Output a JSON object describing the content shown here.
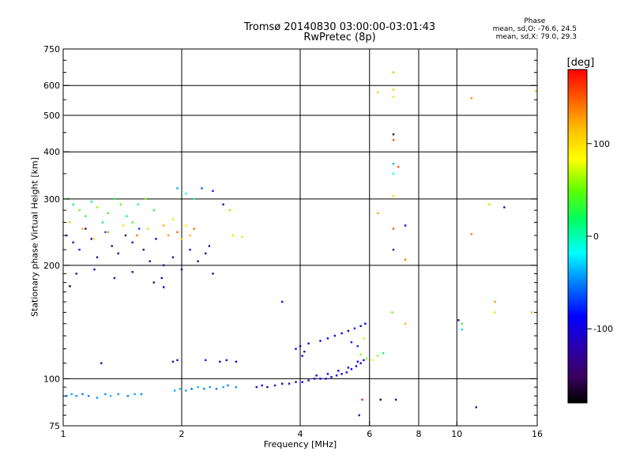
{
  "header": {
    "title": "Tromsø 20140830 03:00:00-03:01:43",
    "subtitle": "RwPretec (8p)"
  },
  "phase_stats": {
    "heading": "Phase",
    "line_o": "mean, sd,O: -76.6, 24.5",
    "line_x": "mean, sd,X:  79.0, 29.3"
  },
  "colorbar": {
    "label": "[deg]",
    "range": [
      -180,
      180
    ],
    "ticks": [
      "100",
      "0",
      "-100"
    ],
    "tick_values": [
      100,
      0,
      -100
    ]
  },
  "chart_data": {
    "type": "scatter",
    "title": "Tromsø 20140830 03:00:00-03:01:43",
    "subtitle": "RwPretec (8p)",
    "xlabel": "Frequency [MHz]",
    "ylabel": "Stationary phase Virtual Height [km]",
    "x_scale": "log",
    "y_scale": "log",
    "xlim": [
      1,
      16
    ],
    "ylim": [
      75,
      750
    ],
    "x_ticks": [
      1,
      2,
      4,
      6,
      8,
      10,
      16
    ],
    "y_ticks": [
      75,
      100,
      200,
      300,
      400,
      500,
      600,
      750
    ],
    "x_gridlines": [
      2,
      4,
      6,
      8,
      10
    ],
    "y_gridlines": [
      100,
      200,
      300,
      400,
      500,
      600
    ],
    "color_by": "phase_deg",
    "series": [
      {
        "points": [
          [
            1.02,
            90,
            -50
          ],
          [
            1.05,
            91,
            -40
          ],
          [
            1.08,
            90,
            -45
          ],
          [
            1.12,
            91,
            -55
          ],
          [
            1.16,
            90,
            -50
          ],
          [
            1.22,
            89,
            -45
          ],
          [
            1.28,
            91,
            -50
          ],
          [
            1.32,
            90,
            -35
          ],
          [
            1.38,
            91,
            -45
          ],
          [
            1.46,
            90,
            -50
          ],
          [
            1.52,
            91,
            -40
          ],
          [
            1.58,
            91,
            -50
          ],
          [
            1.25,
            110,
            -110
          ],
          [
            1.9,
            111,
            -120
          ],
          [
            1.95,
            112,
            -115
          ],
          [
            1.92,
            93,
            -40
          ],
          [
            1.98,
            94,
            -35
          ],
          [
            2.05,
            93,
            -45
          ],
          [
            2.12,
            94,
            -60
          ],
          [
            2.2,
            95,
            -40
          ],
          [
            2.28,
            94,
            -50
          ],
          [
            2.36,
            95,
            -45
          ],
          [
            2.45,
            94,
            -55
          ],
          [
            2.55,
            95,
            -40
          ],
          [
            2.62,
            96,
            -50
          ],
          [
            2.75,
            95,
            -45
          ],
          [
            2.3,
            112,
            -90
          ],
          [
            2.5,
            111,
            -100
          ],
          [
            2.6,
            112,
            -95
          ],
          [
            2.75,
            111,
            -85
          ],
          [
            3.1,
            95,
            -110
          ],
          [
            3.2,
            96,
            -115
          ],
          [
            3.3,
            95,
            -120
          ],
          [
            3.45,
            96,
            -110
          ],
          [
            3.6,
            97,
            -105
          ],
          [
            3.75,
            97,
            -115
          ],
          [
            3.9,
            98,
            -110
          ],
          [
            4.05,
            98,
            -100
          ],
          [
            4.2,
            99,
            -105
          ],
          [
            4.35,
            100,
            -110
          ],
          [
            4.5,
            100,
            -100
          ],
          [
            4.65,
            100,
            -95
          ],
          [
            4.8,
            101,
            -100
          ],
          [
            4.95,
            102,
            -95
          ],
          [
            5.1,
            103,
            -100
          ],
          [
            5.25,
            104,
            -105
          ],
          [
            5.4,
            106,
            -90
          ],
          [
            5.55,
            108,
            -95
          ],
          [
            5.7,
            110,
            -100
          ],
          [
            5.8,
            112,
            -90
          ],
          [
            4.4,
            102,
            -100
          ],
          [
            4.7,
            103,
            -95
          ],
          [
            5.0,
            105,
            -90
          ],
          [
            5.3,
            107,
            -100
          ],
          [
            5.6,
            111,
            -95
          ],
          [
            3.9,
            120,
            -110
          ],
          [
            4.0,
            122,
            -105
          ],
          [
            4.1,
            118,
            -115
          ],
          [
            4.2,
            124,
            -100
          ],
          [
            4.05,
            115,
            -110
          ],
          [
            4.5,
            126,
            -95
          ],
          [
            4.7,
            128,
            -90
          ],
          [
            4.9,
            130,
            -95
          ],
          [
            5.1,
            132,
            -90
          ],
          [
            5.3,
            134,
            -95
          ],
          [
            5.5,
            136,
            -80
          ],
          [
            5.7,
            138,
            -90
          ],
          [
            5.85,
            140,
            -85
          ],
          [
            5.4,
            125,
            -80
          ],
          [
            5.6,
            122,
            -75
          ],
          [
            3.6,
            160,
            -90
          ],
          [
            5.7,
            116,
            60
          ],
          [
            5.9,
            113,
            60
          ],
          [
            6.1,
            112,
            80
          ],
          [
            6.3,
            115,
            60
          ],
          [
            6.5,
            117,
            20
          ],
          [
            5.8,
            128,
            100
          ],
          [
            5.75,
            88,
            170
          ],
          [
            5.65,
            80,
            -120
          ],
          [
            6.4,
            88,
            -170
          ],
          [
            7.0,
            88,
            -120
          ],
          [
            6.85,
            150,
            50
          ],
          [
            7.4,
            140,
            120
          ],
          [
            10.1,
            143,
            -120
          ],
          [
            10.3,
            140,
            30
          ],
          [
            10.3,
            135,
            -30
          ],
          [
            11.2,
            84,
            -140
          ],
          [
            12.5,
            150,
            100
          ],
          [
            12.5,
            160,
            130
          ],
          [
            15.5,
            150,
            120
          ],
          [
            1.03,
            300,
            40
          ],
          [
            1.06,
            290,
            20
          ],
          [
            1.1,
            280,
            50
          ],
          [
            1.14,
            270,
            30
          ],
          [
            1.18,
            295,
            10
          ],
          [
            1.22,
            285,
            60
          ],
          [
            1.26,
            260,
            20
          ],
          [
            1.3,
            275,
            40
          ],
          [
            1.35,
            300,
            30
          ],
          [
            1.4,
            290,
            50
          ],
          [
            1.45,
            270,
            20
          ],
          [
            1.5,
            260,
            40
          ],
          [
            1.55,
            290,
            10
          ],
          [
            1.62,
            300,
            60
          ],
          [
            1.7,
            280,
            30
          ],
          [
            1.02,
            240,
            -140
          ],
          [
            1.06,
            230,
            -110
          ],
          [
            1.1,
            220,
            -80
          ],
          [
            1.14,
            250,
            -150
          ],
          [
            1.18,
            235,
            -100
          ],
          [
            1.22,
            210,
            -130
          ],
          [
            1.28,
            245,
            -60
          ],
          [
            1.33,
            225,
            -120
          ],
          [
            1.38,
            215,
            -90
          ],
          [
            1.44,
            240,
            -150
          ],
          [
            1.5,
            230,
            -100
          ],
          [
            1.56,
            250,
            -70
          ],
          [
            1.6,
            220,
            -140
          ],
          [
            1.66,
            205,
            -110
          ],
          [
            1.72,
            235,
            -90
          ],
          [
            1.04,
            260,
            110
          ],
          [
            1.12,
            250,
            120
          ],
          [
            1.2,
            235,
            90
          ],
          [
            1.3,
            245,
            130
          ],
          [
            1.42,
            255,
            100
          ],
          [
            1.54,
            240,
            140
          ],
          [
            1.64,
            250,
            110
          ],
          [
            1.8,
            255,
            120
          ],
          [
            1.85,
            240,
            130
          ],
          [
            1.9,
            265,
            100
          ],
          [
            1.95,
            245,
            150
          ],
          [
            2.0,
            235,
            110
          ],
          [
            2.05,
            255,
            90
          ],
          [
            2.1,
            240,
            120
          ],
          [
            2.15,
            250,
            140
          ],
          [
            1.8,
            200,
            -130
          ],
          [
            1.9,
            210,
            -120
          ],
          [
            2.0,
            195,
            -140
          ],
          [
            2.1,
            220,
            -110
          ],
          [
            2.2,
            205,
            -125
          ],
          [
            2.3,
            215,
            -135
          ],
          [
            2.35,
            225,
            -115
          ],
          [
            1.95,
            320,
            -40
          ],
          [
            2.05,
            310,
            -20
          ],
          [
            2.15,
            300,
            0
          ],
          [
            2.25,
            320,
            -60
          ],
          [
            2.4,
            315,
            -80
          ],
          [
            2.55,
            290,
            -110
          ],
          [
            2.65,
            280,
            60
          ],
          [
            2.7,
            240,
            100
          ],
          [
            1.08,
            190,
            -130
          ],
          [
            1.2,
            195,
            -100
          ],
          [
            1.35,
            185,
            -120
          ],
          [
            1.5,
            192,
            -110
          ],
          [
            1.7,
            180,
            -140
          ],
          [
            1.78,
            185,
            -120
          ],
          [
            1.8,
            175,
            -100
          ],
          [
            2.4,
            190,
            -110
          ],
          [
            1.04,
            176,
            -170
          ],
          [
            6.3,
            575,
            110
          ],
          [
            6.9,
            650,
            120
          ],
          [
            6.9,
            585,
            110
          ],
          [
            6.9,
            560,
            100
          ],
          [
            10.9,
            555,
            130
          ],
          [
            15.9,
            580,
            120
          ],
          [
            6.9,
            445,
            -160
          ],
          [
            6.9,
            430,
            150
          ],
          [
            6.9,
            372,
            -40
          ],
          [
            7.1,
            365,
            150
          ],
          [
            6.9,
            350,
            -20
          ],
          [
            6.9,
            305,
            110
          ],
          [
            6.3,
            275,
            120
          ],
          [
            6.9,
            250,
            150
          ],
          [
            7.4,
            255,
            -100
          ],
          [
            6.9,
            220,
            -130
          ],
          [
            7.4,
            207,
            140
          ],
          [
            10.9,
            242,
            140
          ],
          [
            12.1,
            290,
            110
          ],
          [
            13.2,
            285,
            -110
          ],
          [
            2.85,
            238,
            100
          ]
        ]
      }
    ]
  }
}
